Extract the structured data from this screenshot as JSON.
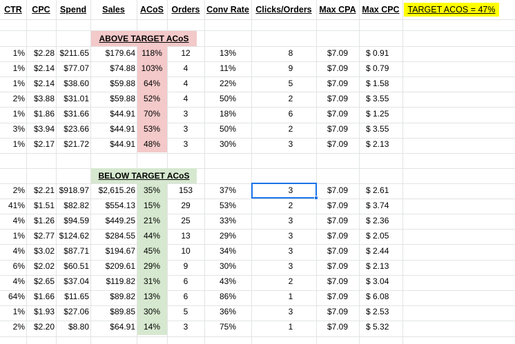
{
  "headers": [
    {
      "key": "ctr",
      "label": "CTR"
    },
    {
      "key": "cpc",
      "label": "CPC"
    },
    {
      "key": "spend",
      "label": "Spend"
    },
    {
      "key": "sales",
      "label": "Sales"
    },
    {
      "key": "acos",
      "label": "ACoS"
    },
    {
      "key": "orders",
      "label": "Orders"
    },
    {
      "key": "conv",
      "label": "Conv Rate"
    },
    {
      "key": "clicks",
      "label": "Clicks/Orders"
    },
    {
      "key": "maxcpa",
      "label": "Max CPA"
    },
    {
      "key": "maxcpc",
      "label": "Max CPC"
    }
  ],
  "target_label": "TARGET ACOS = 47%",
  "above": {
    "title": "ABOVE TARGET ACoS",
    "rows": [
      [
        "1%",
        "$2.28",
        "$211.65",
        "$179.64",
        "118%",
        "12",
        "13%",
        "8",
        "$7.09",
        "$ 0.91"
      ],
      [
        "1%",
        "$2.14",
        "$77.07",
        "$74.88",
        "103%",
        "4",
        "11%",
        "9",
        "$7.09",
        "$ 0.79"
      ],
      [
        "1%",
        "$2.14",
        "$38.60",
        "$59.88",
        "64%",
        "4",
        "22%",
        "5",
        "$7.09",
        "$ 1.58"
      ],
      [
        "2%",
        "$3.88",
        "$31.01",
        "$59.88",
        "52%",
        "4",
        "50%",
        "2",
        "$7.09",
        "$ 3.55"
      ],
      [
        "1%",
        "$1.86",
        "$31.66",
        "$44.91",
        "70%",
        "3",
        "18%",
        "6",
        "$7.09",
        "$ 1.25"
      ],
      [
        "3%",
        "$3.94",
        "$23.66",
        "$44.91",
        "53%",
        "3",
        "50%",
        "2",
        "$7.09",
        "$ 3.55"
      ],
      [
        "1%",
        "$2.17",
        "$21.72",
        "$44.91",
        "48%",
        "3",
        "30%",
        "3",
        "$7.09",
        "$ 2.13"
      ]
    ]
  },
  "below": {
    "title": "BELOW TARGET ACoS",
    "rows": [
      [
        "2%",
        "$2.21",
        "$918.97",
        "$2,615.26",
        "35%",
        "153",
        "37%",
        "3",
        "$7.09",
        "$ 2.61"
      ],
      [
        "41%",
        "$1.51",
        "$82.82",
        "$554.13",
        "15%",
        "29",
        "53%",
        "2",
        "$7.09",
        "$ 3.74"
      ],
      [
        "4%",
        "$1.26",
        "$94.59",
        "$449.25",
        "21%",
        "25",
        "33%",
        "3",
        "$7.09",
        "$ 2.36"
      ],
      [
        "1%",
        "$2.77",
        "$124.62",
        "$284.55",
        "44%",
        "13",
        "29%",
        "3",
        "$7.09",
        "$ 2.05"
      ],
      [
        "4%",
        "$3.02",
        "$87.71",
        "$194.67",
        "45%",
        "10",
        "34%",
        "3",
        "$7.09",
        "$ 2.44"
      ],
      [
        "6%",
        "$2.02",
        "$60.51",
        "$209.61",
        "29%",
        "9",
        "30%",
        "3",
        "$7.09",
        "$ 2.13"
      ],
      [
        "4%",
        "$2.65",
        "$37.04",
        "$119.82",
        "31%",
        "6",
        "43%",
        "2",
        "$7.09",
        "$ 3.04"
      ],
      [
        "64%",
        "$1.66",
        "$11.65",
        "$89.82",
        "13%",
        "6",
        "86%",
        "1",
        "$7.09",
        "$ 6.08"
      ],
      [
        "1%",
        "$1.93",
        "$27.06",
        "$89.85",
        "30%",
        "5",
        "36%",
        "3",
        "$7.09",
        "$ 2.53"
      ],
      [
        "2%",
        "$2.20",
        "$8.80",
        "$64.91",
        "14%",
        "3",
        "75%",
        "1",
        "$7.09",
        "$ 5.32"
      ]
    ]
  },
  "colors": {
    "above_fill": "#f3c9c9",
    "below_fill": "#d6e8cf",
    "target_fill": "#ffff00",
    "selection": "#1a73e8",
    "gridline": "#e2e3e3"
  }
}
